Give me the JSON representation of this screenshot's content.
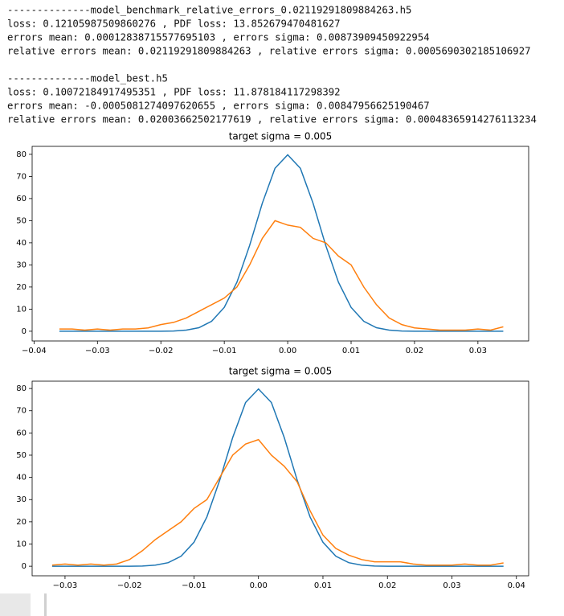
{
  "output_blocks": [
    [
      "--------------model_benchmark_relative_errors_0.02119291809884263.h5",
      "loss: 0.12105987509860276 , PDF loss: 13.852679470481627",
      "errors mean: 0.00012838715577695103 , errors sigma: 0.00873909450922954",
      "relative errors mean: 0.02119291809884263 , relative errors sigma: 0.0005690302185106927"
    ],
    [
      "--------------model_best.h5",
      "loss: 0.10072184917495351 , PDF loss: 11.878184117298392",
      "errors mean: -0.0005081274097620655 , errors sigma: 0.00847956625190467",
      "relative errors mean: 0.02003662502177619 , relative errors sigma: 0.00048365914276113234"
    ]
  ],
  "chart_data": [
    {
      "type": "line",
      "title": "target sigma = 0.005",
      "x": [
        -0.036,
        -0.034,
        -0.032,
        -0.03,
        -0.028,
        -0.026,
        -0.024,
        -0.022,
        -0.02,
        -0.018,
        -0.016,
        -0.014,
        -0.012,
        -0.01,
        -0.008,
        -0.006,
        -0.004,
        -0.002,
        0,
        0.002,
        0.004,
        0.006,
        0.008,
        0.01,
        0.012,
        0.014,
        0.016,
        0.018,
        0.02,
        0.022,
        0.024,
        0.026,
        0.028,
        0.03,
        0.032,
        0.034
      ],
      "series": [
        {
          "color": "#1f77b4",
          "values": [
            0,
            0,
            0,
            0,
            0,
            0,
            0,
            0,
            0,
            0.1,
            0.5,
            1.6,
            4.5,
            10.8,
            22.2,
            38.8,
            57.9,
            73.7,
            79.8,
            73.7,
            57.9,
            38.8,
            22.2,
            10.8,
            4.5,
            1.6,
            0.5,
            0.1,
            0,
            0,
            0,
            0,
            0,
            0,
            0,
            0
          ]
        },
        {
          "color": "#ff7f0e",
          "values": [
            1,
            1,
            0.5,
            1,
            0.5,
            1,
            1,
            1.5,
            3,
            4,
            6,
            9,
            12,
            15,
            20,
            30,
            42,
            50,
            48,
            47,
            42,
            40,
            34,
            30,
            20,
            12,
            6,
            3,
            1.5,
            1,
            0.5,
            0.5,
            0.5,
            1,
            0.5,
            2
          ]
        }
      ],
      "xlim": [
        -0.0403,
        0.038
      ],
      "xticks": [
        {
          "value": -0.04,
          "label": "−0.04"
        },
        {
          "value": -0.03,
          "label": "−0.03"
        },
        {
          "value": -0.02,
          "label": "−0.02"
        },
        {
          "value": -0.01,
          "label": "−0.01"
        },
        {
          "value": 0,
          "label": "0.00"
        },
        0.01,
        0.02,
        0.03
      ],
      "ylim": [
        -4.4,
        83.6
      ],
      "yticks": [
        0,
        10,
        20,
        30,
        40,
        50,
        60,
        70,
        80
      ]
    },
    {
      "type": "line",
      "title": "target sigma = 0.005",
      "x": [
        -0.032,
        -0.03,
        -0.028,
        -0.026,
        -0.024,
        -0.022,
        -0.02,
        -0.018,
        -0.016,
        -0.014,
        -0.012,
        -0.01,
        -0.008,
        -0.006,
        -0.004,
        -0.002,
        0,
        0.002,
        0.004,
        0.006,
        0.008,
        0.01,
        0.012,
        0.014,
        0.016,
        0.018,
        0.02,
        0.022,
        0.024,
        0.026,
        0.028,
        0.03,
        0.032,
        0.034,
        0.036,
        0.038
      ],
      "series": [
        {
          "color": "#1f77b4",
          "values": [
            0,
            0,
            0,
            0,
            0,
            0,
            0,
            0.1,
            0.5,
            1.6,
            4.5,
            10.8,
            22.2,
            38.8,
            57.9,
            73.7,
            79.8,
            73.7,
            57.9,
            38.8,
            22.2,
            10.8,
            4.5,
            1.6,
            0.5,
            0.1,
            0,
            0,
            0,
            0,
            0,
            0,
            0,
            0,
            0,
            0
          ]
        },
        {
          "color": "#ff7f0e",
          "values": [
            0.5,
            1,
            0.5,
            1,
            0.5,
            1,
            3,
            7,
            12,
            16,
            20,
            26,
            30,
            40,
            50,
            55,
            57,
            50,
            45,
            38,
            25,
            14,
            8,
            5,
            3,
            2,
            2,
            2,
            1,
            0.5,
            0.5,
            0.5,
            1,
            0.5,
            0.5,
            1.5
          ]
        }
      ],
      "xlim": [
        -0.0351,
        0.0419
      ],
      "xticks": [
        {
          "value": -0.03,
          "label": "−0.03"
        },
        {
          "value": -0.02,
          "label": "−0.02"
        },
        {
          "value": -0.01,
          "label": "−0.01"
        },
        {
          "value": 0,
          "label": "0.00"
        },
        0.01,
        0.02,
        0.03,
        0.04
      ],
      "ylim": [
        -4.3,
        83.3
      ],
      "yticks": [
        0,
        10,
        20,
        30,
        40,
        50,
        60,
        70,
        80
      ]
    }
  ]
}
